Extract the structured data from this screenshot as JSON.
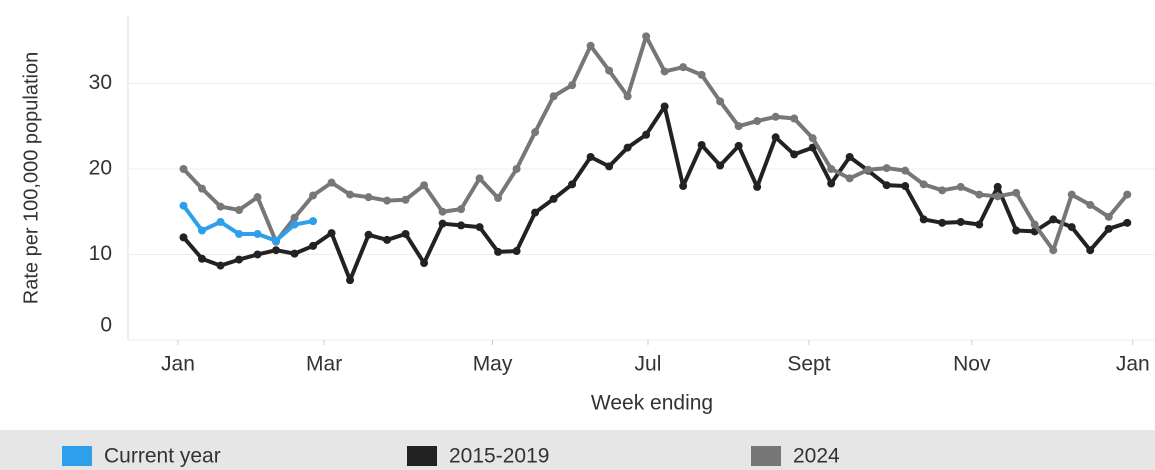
{
  "chart_data": {
    "type": "line",
    "y_label": "Rate per 100,000 population",
    "x_label": "Week ending",
    "x": [
      1,
      2,
      3,
      4,
      5,
      6,
      7,
      8,
      9,
      10,
      11,
      12,
      13,
      14,
      15,
      16,
      17,
      18,
      19,
      20,
      21,
      22,
      23,
      24,
      25,
      26,
      27,
      28,
      29,
      30,
      31,
      32,
      33,
      34,
      35,
      36,
      37,
      38,
      39,
      40,
      41,
      42,
      43,
      44,
      45,
      46,
      47,
      48,
      49,
      50,
      51,
      52
    ],
    "xlim": [
      -2,
      53.5
    ],
    "xticks": [
      {
        "value": 0.7,
        "label": "Jan"
      },
      {
        "value": 8.6,
        "label": "Mar"
      },
      {
        "value": 17.7,
        "label": "May"
      },
      {
        "value": 26.1,
        "label": "Jul"
      },
      {
        "value": 34.8,
        "label": "Sept"
      },
      {
        "value": 43.6,
        "label": "Nov"
      },
      {
        "value": 52.3,
        "label": "Jan"
      }
    ],
    "ylim": [
      0,
      38
    ],
    "yticks": [
      0,
      10,
      20,
      30
    ],
    "grid": true,
    "legend": "bottom",
    "series": [
      {
        "name": "2015-2019",
        "color": "#222222",
        "values": [
          12,
          9.5,
          8.7,
          9.4,
          10,
          10.5,
          10.1,
          11,
          12.5,
          7,
          12.3,
          11.7,
          12.4,
          9,
          13.6,
          13.4,
          13.2,
          10.3,
          10.4,
          14.9,
          16.5,
          18.2,
          21.4,
          20.3,
          22.5,
          24,
          27.3,
          18,
          22.8,
          20.4,
          22.7,
          17.9,
          23.7,
          21.7,
          22.5,
          18.3,
          21.4,
          19.8,
          18.1,
          18,
          14.1,
          13.7,
          13.8,
          13.5,
          17.9,
          12.8,
          12.7,
          14.1,
          13.2,
          10.5,
          13,
          13.7
        ]
      },
      {
        "name": "2024",
        "color": "#777777",
        "values": [
          20,
          17.7,
          15.6,
          15.2,
          16.7,
          11.5,
          14.3,
          16.9,
          18.4,
          17,
          16.7,
          16.3,
          16.4,
          18.1,
          15,
          15.3,
          18.9,
          16.6,
          20,
          24.3,
          28.5,
          29.8,
          34.4,
          31.5,
          28.5,
          35.5,
          31.4,
          31.9,
          31,
          27.9,
          25,
          25.6,
          26.1,
          25.9,
          23.6,
          20,
          18.9,
          19.9,
          20.1,
          19.8,
          18.2,
          17.5,
          17.9,
          17,
          16.8,
          17.2,
          13.5,
          10.5,
          17,
          15.8,
          14.4,
          17
        ]
      },
      {
        "name": "Current year",
        "color": "#2e9fea",
        "values": [
          15.7,
          12.8,
          13.8,
          12.4,
          12.4,
          11.6,
          13.5,
          13.9,
          null,
          null,
          null,
          null,
          null,
          null,
          null,
          null,
          null,
          null,
          null,
          null,
          null,
          null,
          null,
          null,
          null,
          null,
          null,
          null,
          null,
          null,
          null,
          null,
          null,
          null,
          null,
          null,
          null,
          null,
          null,
          null,
          null,
          null,
          null,
          null,
          null,
          null,
          null,
          null,
          null,
          null,
          null,
          null
        ]
      }
    ],
    "legend_order": [
      "Current year",
      "2015-2019",
      "2024"
    ]
  }
}
